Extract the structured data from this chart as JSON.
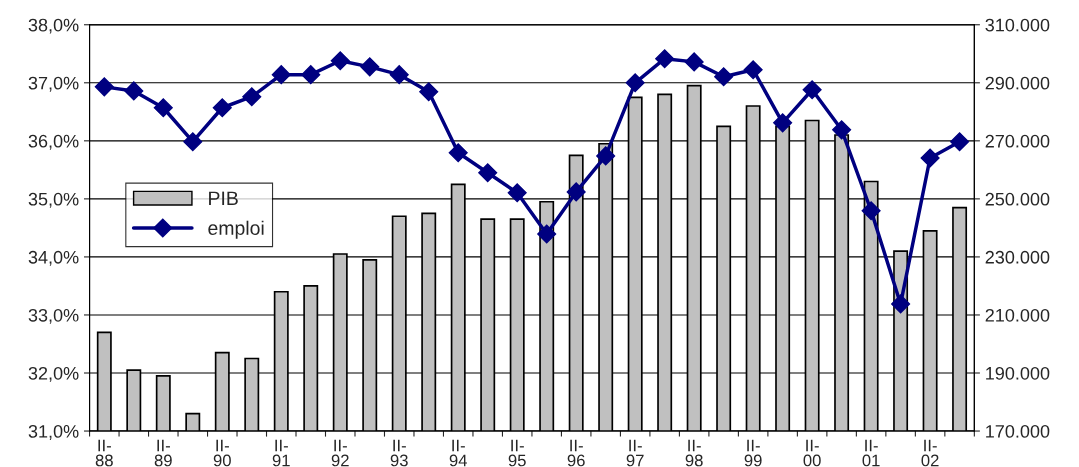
{
  "chart_data": {
    "type": "bar",
    "categories": [
      "II-\n88",
      null,
      "II-\n89",
      null,
      "II-\n90",
      null,
      "II-\n91",
      null,
      "II-\n92",
      null,
      "II-\n93",
      null,
      "II-\n94",
      null,
      "II-\n95",
      null,
      "II-\n96",
      null,
      "II-\n97",
      null,
      "II-\n98",
      null,
      "II-\n99",
      null,
      "II-\n00",
      null,
      "II-\n01",
      null,
      "II-\n02",
      null
    ],
    "series": [
      {
        "name": "PIB",
        "color": "#c0c0c0",
        "values": [
          32.7,
          32.05,
          31.95,
          31.3,
          32.35,
          32.25,
          33.4,
          33.5,
          34.05,
          33.95,
          34.7,
          34.75,
          35.25,
          34.65,
          34.65,
          34.95,
          35.75,
          35.95,
          36.75,
          36.8,
          36.95,
          36.25,
          36.6,
          36.25,
          36.35,
          36.1,
          35.3,
          34.1,
          34.45,
          34.85
        ]
      },
      {
        "name": "emploi",
        "type": "line",
        "axis": "y2",
        "color": "#000080",
        "marker": "diamond",
        "values": [
          288600,
          287200,
          281400,
          269700,
          281400,
          285200,
          292800,
          292800,
          297600,
          295500,
          292800,
          286900,
          265900,
          259000,
          252100,
          237900,
          252400,
          264800,
          290000,
          298300,
          297200,
          292100,
          294500,
          276200,
          287600,
          273800,
          245900,
          213800,
          264100,
          269700
        ]
      }
    ],
    "ylim": [
      31,
      38
    ],
    "yticks": [
      {
        "value": 31,
        "label": "31,0%"
      },
      {
        "value": 32,
        "label": "32,0%"
      },
      {
        "value": 33,
        "label": "33,0%"
      },
      {
        "value": 34,
        "label": "34,0%"
      },
      {
        "value": 35,
        "label": "35,0%"
      },
      {
        "value": 36,
        "label": "36,0%"
      },
      {
        "value": 37,
        "label": "37,0%"
      },
      {
        "value": 38,
        "label": "38,0%"
      }
    ],
    "y2lim": [
      170000,
      310000
    ],
    "y2ticks": [
      {
        "value": 170000,
        "label": "170.000"
      },
      {
        "value": 190000,
        "label": "190.000"
      },
      {
        "value": 210000,
        "label": "210.000"
      },
      {
        "value": 230000,
        "label": "230.000"
      },
      {
        "value": 250000,
        "label": "250.000"
      },
      {
        "value": 270000,
        "label": "270.000"
      },
      {
        "value": 290000,
        "label": "290.000"
      },
      {
        "value": 310000,
        "label": "310.000"
      }
    ],
    "grid": "y",
    "legend": "left"
  }
}
